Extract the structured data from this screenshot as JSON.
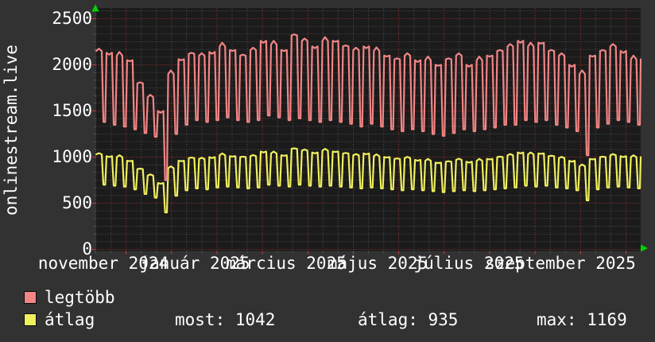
{
  "title": "onlinestream.live",
  "colors": {
    "outer_bg": "#323232",
    "plot_bg": "#1b1b1b",
    "grid_minor": "#4f4f4f",
    "grid_major": "#a03030",
    "tick_red": "#cc3b3b",
    "text": "#ffffff",
    "arrow_green": "#00d400",
    "series_red": "#f28585",
    "series_yellow": "#efef5e"
  },
  "stats_row": [
    "most: 1042",
    "átlag: 935",
    "max: 1169"
  ],
  "chart_data": {
    "type": "line",
    "title": "onlinestream.live",
    "x_range": [
      "november 2024",
      "november 2025"
    ],
    "ylim": [
      0,
      2616
    ],
    "y_ticks": [
      0,
      500,
      1000,
      1500,
      2000,
      2500
    ],
    "y_ticks_display": [
      "2500",
      "2000",
      "1500",
      "1000",
      "500",
      "0"
    ],
    "x_tick_labels": [
      "november 2024",
      "január 2025",
      "március 2025",
      "május 2025",
      "július 2025",
      "szeptember 2025"
    ],
    "grid": true,
    "legend_position": "bottom-left",
    "sampling": "weekly high/low envelope, 53 weeks",
    "series": [
      {
        "name": "legtöbb",
        "color": "#f28585",
        "weekly_high": [
          2150,
          2130,
          2100,
          2050,
          1800,
          1650,
          1500,
          1900,
          2060,
          2120,
          2100,
          2140,
          2200,
          2160,
          2100,
          2160,
          2260,
          2220,
          2160,
          2320,
          2260,
          2200,
          2260,
          2260,
          2200,
          2160,
          2200,
          2150,
          2100,
          2060,
          2100,
          2050,
          2050,
          2000,
          2060,
          2100,
          2000,
          2050,
          2100,
          2150,
          2200,
          2260,
          2200,
          2240,
          2150,
          2100,
          2000,
          1900,
          2100,
          2150,
          2200,
          2150,
          2060
        ],
        "weekly_low": [
          1380,
          1350,
          1330,
          1300,
          1260,
          1220,
          750,
          1250,
          1350,
          1400,
          1380,
          1400,
          1430,
          1400,
          1380,
          1400,
          1450,
          1430,
          1400,
          1420,
          1400,
          1380,
          1400,
          1380,
          1360,
          1330,
          1360,
          1330,
          1300,
          1280,
          1300,
          1280,
          1250,
          1230,
          1260,
          1300,
          1280,
          1300,
          1320,
          1350,
          1350,
          1400,
          1380,
          1400,
          1350,
          1320,
          1280,
          1020,
          1320,
          1360,
          1400,
          1380,
          1350
        ]
      },
      {
        "name": "átlag",
        "color": "#efef5e",
        "weekly_high": [
          1030,
          1010,
          1000,
          960,
          870,
          800,
          720,
          880,
          960,
          990,
          980,
          1000,
          1020,
          1010,
          1000,
          1010,
          1060,
          1040,
          1020,
          1090,
          1070,
          1050,
          1070,
          1060,
          1040,
          1020,
          1040,
          1010,
          1000,
          980,
          990,
          970,
          960,
          940,
          950,
          970,
          950,
          960,
          980,
          1000,
          1020,
          1050,
          1030,
          1040,
          1010,
          990,
          960,
          900,
          980,
          1000,
          1020,
          1010,
          1000
        ],
        "weekly_low": [
          700,
          690,
          680,
          650,
          600,
          560,
          400,
          580,
          640,
          660,
          650,
          670,
          680,
          670,
          660,
          670,
          700,
          690,
          680,
          700,
          690,
          680,
          690,
          680,
          670,
          660,
          670,
          660,
          650,
          640,
          650,
          640,
          630,
          620,
          630,
          640,
          630,
          640,
          650,
          660,
          670,
          690,
          680,
          690,
          670,
          660,
          640,
          530,
          650,
          670,
          680,
          670,
          660
        ]
      }
    ],
    "stats": {
      "most": 1042,
      "átlag": 935,
      "max": 1169
    }
  }
}
